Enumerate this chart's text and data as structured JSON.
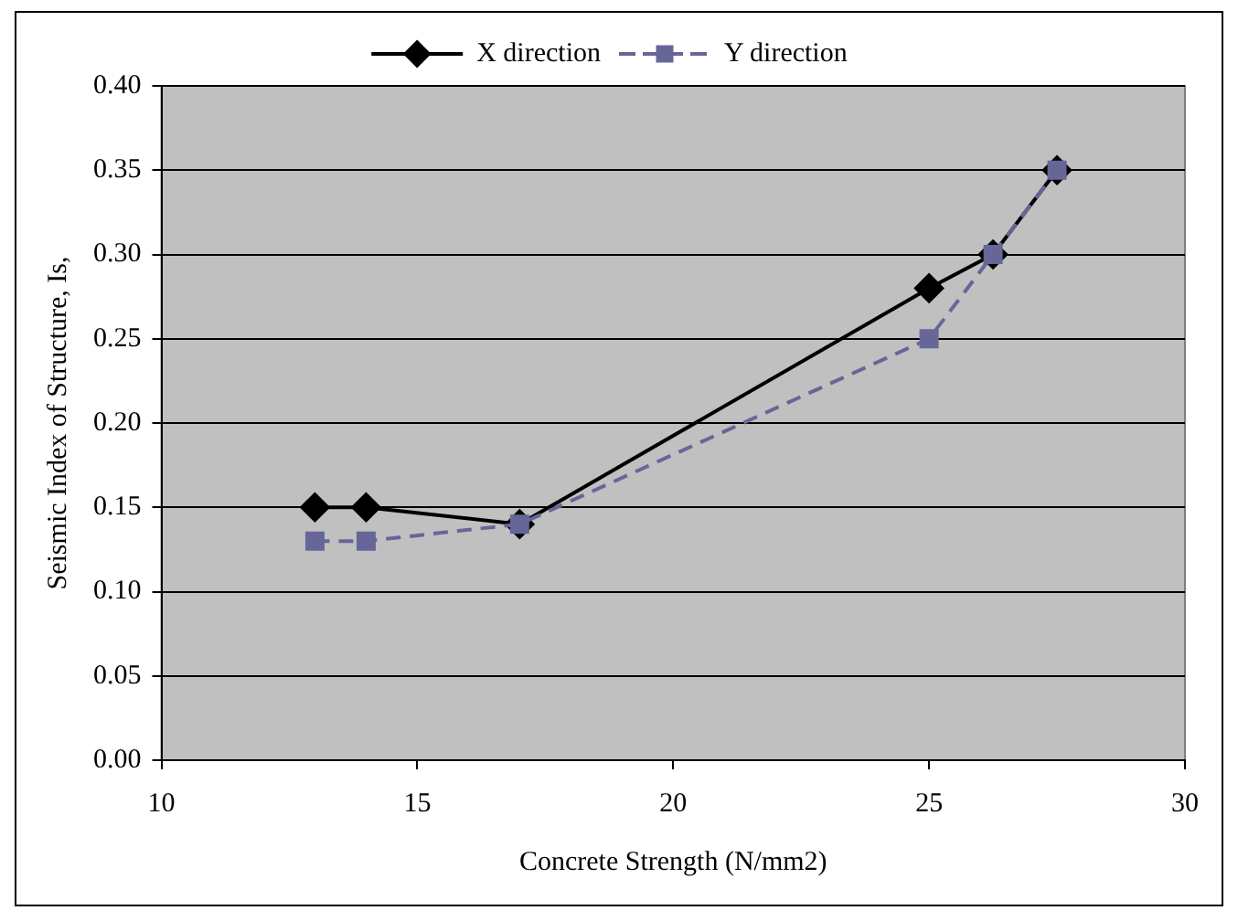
{
  "chart_data": {
    "type": "line",
    "xlabel": "Concrete Strength (N/mm2)",
    "ylabel": "Seismic Index of Structure, Is,",
    "x": [
      13,
      14,
      17,
      25,
      26.25,
      27.5
    ],
    "series": [
      {
        "name": "X direction",
        "color": "#000000",
        "marker": "diamond",
        "line_style": "solid",
        "values": [
          0.15,
          0.15,
          0.14,
          0.28,
          0.3,
          0.35
        ]
      },
      {
        "name": "Y direction",
        "color": "#666699",
        "marker": "square",
        "line_style": "dashed",
        "values": [
          0.13,
          0.13,
          0.14,
          0.25,
          0.3,
          0.35
        ]
      }
    ],
    "xlim": [
      10,
      30
    ],
    "xticks": [
      10,
      15,
      20,
      25,
      30
    ],
    "ylim": [
      0,
      0.4
    ],
    "yticks": [
      {
        "value": 0,
        "label": "0.00"
      },
      {
        "value": 0.05,
        "label": "0.05"
      },
      {
        "value": 0.1,
        "label": "0.10"
      },
      {
        "value": 0.15,
        "label": "0.15"
      },
      {
        "value": 0.2,
        "label": "0.20"
      },
      {
        "value": 0.25,
        "label": "0.25"
      },
      {
        "value": 0.3,
        "label": "0.30"
      },
      {
        "value": 0.35,
        "label": "0.35"
      },
      {
        "value": 0.4,
        "label": "0.40"
      }
    ],
    "grid": "y",
    "legend": "top"
  }
}
